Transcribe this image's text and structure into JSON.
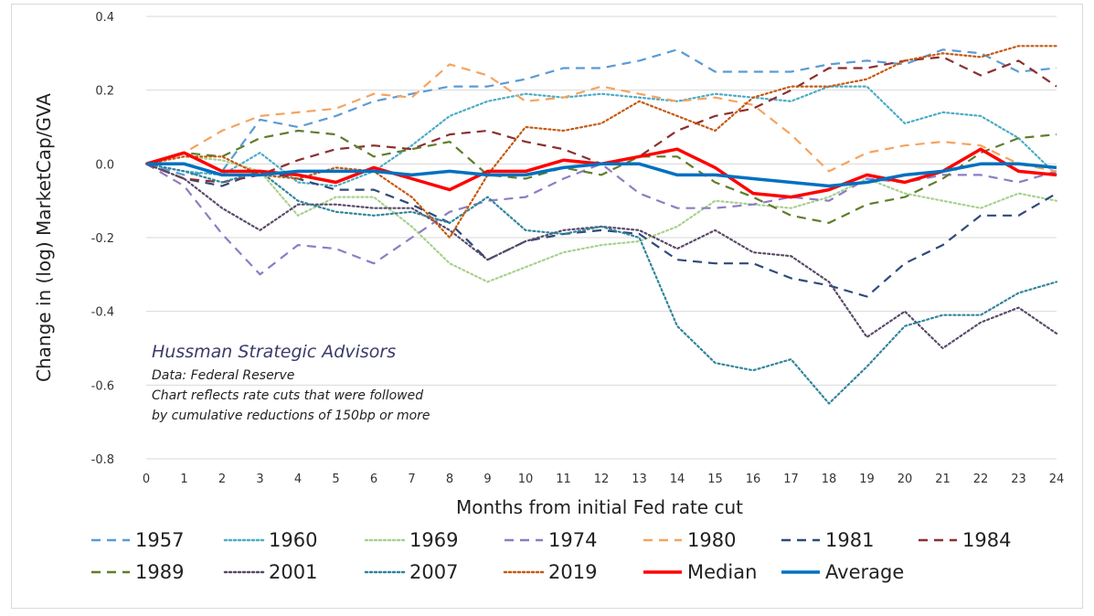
{
  "chart_data": {
    "type": "line",
    "xlabel": "Months from initial Fed rate cut",
    "ylabel": "Change in (log) MarketCap/GVA",
    "xlim": [
      0,
      24
    ],
    "ylim": [
      -0.8,
      0.4
    ],
    "x_ticks": [
      "0",
      "1",
      "2",
      "3",
      "4",
      "5",
      "6",
      "7",
      "8",
      "9",
      "10",
      "11",
      "12",
      "13",
      "14",
      "15",
      "16",
      "17",
      "18",
      "19",
      "20",
      "21",
      "22",
      "23",
      "24"
    ],
    "y_ticks": [
      "0.4",
      "0.2",
      "0.0",
      "-0.2",
      "-0.4",
      "-0.6",
      "-0.8"
    ],
    "grid": true,
    "legend_position": "bottom",
    "annotation": {
      "title": "Hussman Strategic Advisors",
      "lines": [
        "Data: Federal Reserve",
        "Chart reflects rate cuts that were followed",
        "by cumulative reductions of 150bp or more"
      ]
    },
    "x": [
      0,
      1,
      2,
      3,
      4,
      5,
      6,
      7,
      8,
      9,
      10,
      11,
      12,
      13,
      14,
      15,
      16,
      17,
      18,
      19,
      20,
      21,
      22,
      23,
      24
    ],
    "series": [
      {
        "name": "1957",
        "color": "#5b9bd5",
        "style": "dash",
        "values": [
          0,
          -0.03,
          -0.02,
          0.12,
          0.1,
          0.13,
          0.17,
          0.19,
          0.21,
          0.21,
          0.23,
          0.26,
          0.26,
          0.28,
          0.31,
          0.25,
          0.25,
          0.25,
          0.27,
          0.28,
          0.27,
          0.31,
          0.3,
          0.25,
          0.26
        ]
      },
      {
        "name": "1960",
        "color": "#4bacc6",
        "style": "dot",
        "values": [
          0,
          -0.02,
          -0.03,
          0.03,
          -0.05,
          -0.06,
          -0.02,
          0.05,
          0.13,
          0.17,
          0.19,
          0.18,
          0.19,
          0.18,
          0.17,
          0.19,
          0.18,
          0.17,
          0.21,
          0.21,
          0.11,
          0.14,
          0.13,
          0.07,
          -0.03
        ]
      },
      {
        "name": "1969",
        "color": "#a9d18e",
        "style": "dot",
        "values": [
          0,
          0.02,
          0.01,
          -0.02,
          -0.14,
          -0.09,
          -0.09,
          -0.17,
          -0.27,
          -0.32,
          -0.28,
          -0.24,
          -0.22,
          -0.21,
          -0.17,
          -0.1,
          -0.11,
          -0.12,
          -0.09,
          -0.04,
          -0.08,
          -0.1,
          -0.12,
          -0.08,
          -0.1
        ]
      },
      {
        "name": "1974",
        "color": "#8e7cc3",
        "style": "dash",
        "values": [
          0,
          -0.06,
          -0.19,
          -0.3,
          -0.22,
          -0.23,
          -0.27,
          -0.2,
          -0.13,
          -0.1,
          -0.09,
          -0.04,
          0.0,
          -0.08,
          -0.12,
          -0.12,
          -0.11,
          -0.09,
          -0.1,
          -0.04,
          -0.05,
          -0.03,
          -0.03,
          -0.05,
          -0.02
        ]
      },
      {
        "name": "1980",
        "color": "#f4a460",
        "style": "dash",
        "values": [
          0,
          0.03,
          0.09,
          0.13,
          0.14,
          0.15,
          0.19,
          0.18,
          0.27,
          0.24,
          0.17,
          0.18,
          0.21,
          0.19,
          0.17,
          0.18,
          0.16,
          0.08,
          -0.02,
          0.03,
          0.05,
          0.06,
          0.05,
          0.0,
          -0.02
        ]
      },
      {
        "name": "1981",
        "color": "#2e4a7a",
        "style": "dash",
        "values": [
          0,
          -0.04,
          -0.06,
          -0.02,
          -0.04,
          -0.07,
          -0.07,
          -0.11,
          -0.16,
          -0.26,
          -0.21,
          -0.19,
          -0.18,
          -0.19,
          -0.26,
          -0.27,
          -0.27,
          -0.31,
          -0.33,
          -0.36,
          -0.27,
          -0.22,
          -0.14,
          -0.14,
          -0.08
        ]
      },
      {
        "name": "1984",
        "color": "#8b2f2f",
        "style": "dash",
        "values": [
          0,
          -0.04,
          -0.05,
          -0.03,
          0.01,
          0.04,
          0.05,
          0.04,
          0.08,
          0.09,
          0.06,
          0.04,
          0.0,
          0.02,
          0.09,
          0.13,
          0.15,
          0.2,
          0.26,
          0.26,
          0.28,
          0.29,
          0.24,
          0.28,
          0.21
        ]
      },
      {
        "name": "1989",
        "color": "#5e7d2b",
        "style": "dash",
        "values": [
          0,
          0.03,
          0.02,
          0.07,
          0.09,
          0.08,
          0.02,
          0.04,
          0.06,
          -0.03,
          -0.04,
          -0.01,
          -0.03,
          0.02,
          0.02,
          -0.05,
          -0.09,
          -0.14,
          -0.16,
          -0.11,
          -0.09,
          -0.04,
          0.03,
          0.07,
          0.08
        ]
      },
      {
        "name": "2001",
        "color": "#5a4a6a",
        "style": "dot",
        "values": [
          0,
          -0.04,
          -0.12,
          -0.18,
          -0.11,
          -0.11,
          -0.12,
          -0.12,
          -0.18,
          -0.26,
          -0.21,
          -0.18,
          -0.17,
          -0.18,
          -0.23,
          -0.18,
          -0.24,
          -0.25,
          -0.32,
          -0.47,
          -0.4,
          -0.5,
          -0.43,
          -0.39,
          -0.46
        ]
      },
      {
        "name": "2007",
        "color": "#31859c",
        "style": "dot",
        "values": [
          0,
          -0.02,
          -0.05,
          -0.02,
          -0.1,
          -0.13,
          -0.14,
          -0.13,
          -0.16,
          -0.09,
          -0.18,
          -0.19,
          -0.17,
          -0.2,
          -0.44,
          -0.54,
          -0.56,
          -0.53,
          -0.65,
          -0.55,
          -0.44,
          -0.41,
          -0.41,
          -0.35,
          -0.32
        ]
      },
      {
        "name": "2019",
        "color": "#c55a11",
        "style": "dot",
        "values": [
          0,
          0.02,
          0.02,
          -0.03,
          -0.04,
          -0.01,
          -0.02,
          -0.09,
          -0.2,
          -0.03,
          0.1,
          0.09,
          0.11,
          0.17,
          0.13,
          0.09,
          0.18,
          0.21,
          0.21,
          0.23,
          0.28,
          0.3,
          0.29,
          0.32,
          0.32
        ]
      },
      {
        "name": "Median",
        "color": "#ff0000",
        "style": "solid",
        "width": 3.5,
        "values": [
          0,
          0.03,
          -0.02,
          -0.02,
          -0.03,
          -0.05,
          -0.01,
          -0.04,
          -0.07,
          -0.02,
          -0.02,
          0.01,
          0.0,
          0.02,
          0.04,
          -0.01,
          -0.08,
          -0.09,
          -0.07,
          -0.03,
          -0.05,
          -0.02,
          0.04,
          -0.02,
          -0.03
        ]
      },
      {
        "name": "Average",
        "color": "#0070c0",
        "style": "solid",
        "width": 3.5,
        "values": [
          0,
          0.0,
          -0.03,
          -0.03,
          -0.02,
          -0.02,
          -0.02,
          -0.03,
          -0.02,
          -0.03,
          -0.03,
          -0.01,
          0.0,
          0.0,
          -0.03,
          -0.03,
          -0.04,
          -0.05,
          -0.06,
          -0.05,
          -0.03,
          -0.02,
          0.0,
          0.0,
          -0.01
        ]
      }
    ]
  }
}
